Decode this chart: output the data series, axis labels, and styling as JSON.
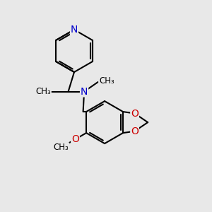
{
  "background_color": "#e8e8e8",
  "bond_color": "#000000",
  "N_color": "#0000cc",
  "O_color": "#cc0000",
  "line_width": 1.5,
  "font_size_atom": 9,
  "fig_size": [
    3.0,
    3.0
  ],
  "dpi": 100,
  "xlim": [
    0,
    10
  ],
  "ylim": [
    0,
    10
  ]
}
